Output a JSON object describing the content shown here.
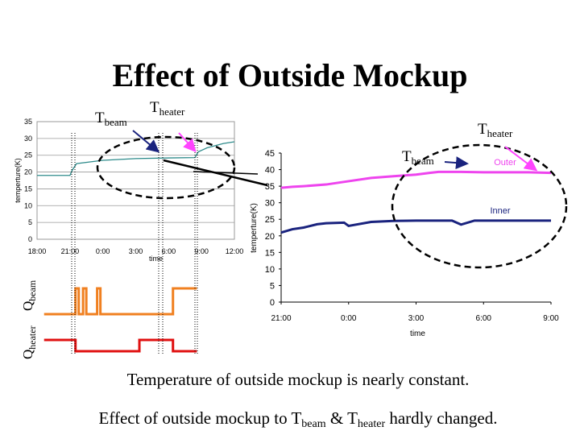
{
  "slide": {
    "title": "Effect of Outside Mockup",
    "caption1": "Temperature of outside mockup is nearly constant.",
    "caption2_prefix": "Effect of outside mockup to T",
    "caption2_sub1": "beam",
    "caption2_mid": " & T",
    "caption2_sub2": "heater",
    "caption2_suffix": " hardly changed."
  },
  "annotations": {
    "t": "T",
    "beam": "beam",
    "heater": "heater",
    "q": "Q",
    "outer": "Outer",
    "inner": "Inner"
  },
  "colors": {
    "left_line": "#2e8b8b",
    "outer": "#ee44ee",
    "inner": "#1a237e",
    "qbeam": "#f08020",
    "qheater": "#e01010",
    "arrow_pink": "#ff44ff",
    "arrow_dark": "#1a237e"
  },
  "chart_data": [
    {
      "type": "line",
      "x_ticks": [
        "18:00",
        "21:00",
        "0:00",
        "3:00",
        "6:00",
        "9:00",
        "12:00"
      ],
      "y_ticks": [
        "0",
        "5",
        "10",
        "15",
        "20",
        "25",
        "30",
        "35"
      ],
      "ylim": [
        0,
        35
      ],
      "xlabel": "time",
      "ylabel": "temperture(K)",
      "grid": true,
      "series": [
        {
          "x": [
            0,
            3,
            3.2,
            3.6,
            6,
            9,
            12,
            14.4,
            14.7,
            15.5,
            17,
            18
          ],
          "y": [
            19,
            19,
            20.5,
            22.5,
            23.5,
            24,
            24.2,
            24.3,
            26,
            27.2,
            28.5,
            29
          ]
        }
      ]
    },
    {
      "type": "line",
      "x_ticks": [
        "21:00",
        "0:00",
        "3:00",
        "6:00",
        "9:00"
      ],
      "y_ticks": [
        "0",
        "5",
        "10",
        "15",
        "20",
        "25",
        "30",
        "35",
        "40",
        "45"
      ],
      "ylim": [
        0,
        45
      ],
      "xlabel": "time",
      "ylabel": "temperture(K)",
      "grid": false,
      "series": [
        {
          "name": "Outer",
          "x": [
            0,
            0.5,
            1,
            2,
            3,
            4,
            5,
            6,
            6.6,
            7,
            8,
            9,
            10,
            11,
            12
          ],
          "y": [
            34.5,
            34.8,
            35,
            35.5,
            36.5,
            37.5,
            38,
            38.5,
            39,
            39.3,
            39.3,
            39.2,
            39.2,
            39.2,
            39
          ]
        },
        {
          "name": "Inner",
          "x": [
            0,
            0.5,
            1,
            1.6,
            2,
            2.8,
            3,
            4,
            5,
            6,
            7,
            7.6,
            8,
            8.6,
            9,
            10,
            11,
            12
          ],
          "y": [
            21,
            22,
            22.5,
            23.5,
            23.8,
            24,
            23,
            24.2,
            24.5,
            24.6,
            24.6,
            24.6,
            23.4,
            24.6,
            24.6,
            24.6,
            24.6,
            24.6
          ]
        }
      ]
    },
    {
      "type": "line",
      "name": "Qbeam",
      "x": [
        0.5,
        3.4,
        3.4,
        3.7,
        3.7,
        4.1,
        4.1,
        4.4,
        4.4,
        5.4,
        5.4,
        5.7,
        5.7,
        12.4,
        12.4,
        14.6
      ],
      "y": [
        0,
        0,
        1,
        1,
        0,
        0,
        1,
        1,
        0,
        0,
        1,
        1,
        0,
        0,
        1,
        1
      ]
    },
    {
      "type": "line",
      "name": "Qheater",
      "x": [
        0.5,
        3.4,
        3.4,
        9.3,
        9.3,
        12.4,
        12.4,
        14.6
      ],
      "y": [
        1,
        1,
        0,
        0,
        1,
        1,
        0,
        0
      ]
    }
  ]
}
